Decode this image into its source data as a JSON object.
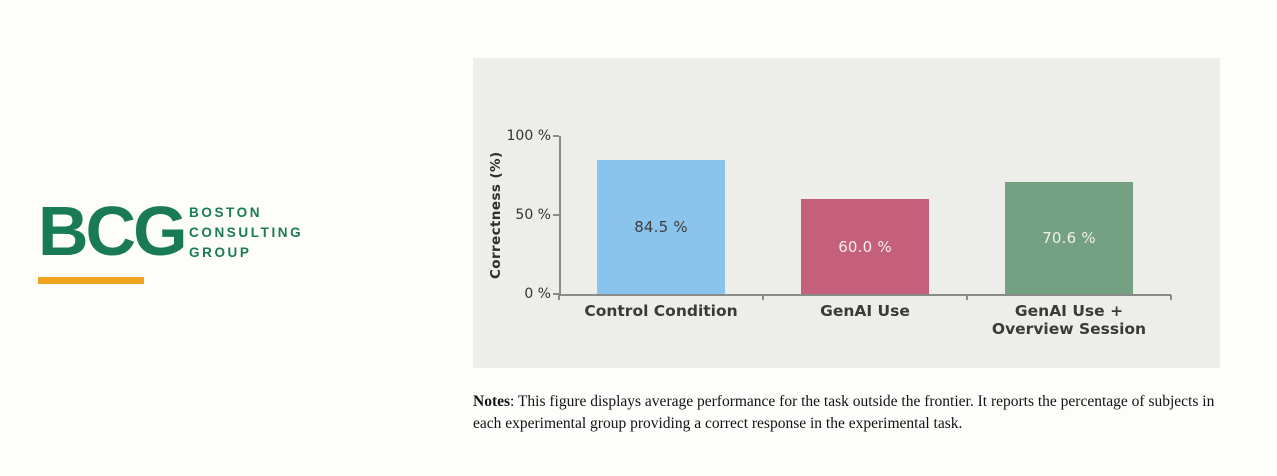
{
  "logo": {
    "monogram": "BCG",
    "wordmark_lines": [
      "BOSTON",
      "CONSULTING",
      "GROUP"
    ],
    "brand_green": "#197A56",
    "accent_gold": "#EFA31E"
  },
  "chart_data": {
    "type": "bar",
    "categories": [
      "Control Condition",
      "GenAI Use",
      "GenAI Use +\nOverview Session"
    ],
    "values": [
      84.5,
      60.0,
      70.6
    ],
    "bar_labels": [
      "84.5 %",
      "60.0 %",
      "70.6 %"
    ],
    "bar_colors": [
      "#8AC4EC",
      "#C5607C",
      "#74A181"
    ],
    "bar_label_colors": [
      "#3D3D3D",
      "#F2EFEC",
      "#F2EFEC"
    ],
    "title": "",
    "xlabel": "",
    "ylabel": "Correctness (%)",
    "ylim": [
      0,
      100
    ],
    "yticks": [
      {
        "value": 0,
        "label": "0 %"
      },
      {
        "value": 50,
        "label": "50 %"
      },
      {
        "value": 100,
        "label": "100 %"
      }
    ],
    "grid": false,
    "legend_position": "none",
    "panel_background": "#EDEEEA",
    "axis_color": "#8A8A8A"
  },
  "notes": {
    "label": "Notes",
    "text": ": This figure displays average performance for the task outside the frontier. It reports the percentage of subjects in each experimental group providing a correct response in the experimental task."
  }
}
